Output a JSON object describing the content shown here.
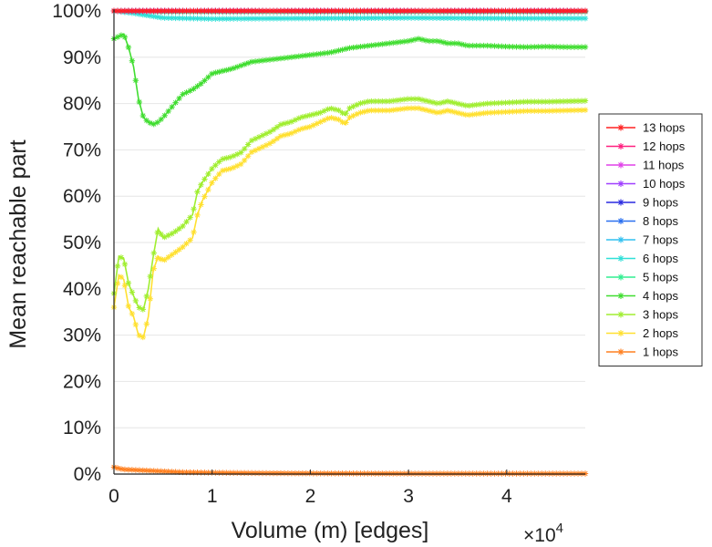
{
  "chart_data": {
    "type": "line",
    "xlabel": "Volume (m) [edges]",
    "ylabel": "Mean reachable part",
    "x_exponent_label": "×10",
    "x_exponent_power": "4",
    "xlim": [
      0,
      48000
    ],
    "ylim": [
      0,
      100
    ],
    "x_ticks": [
      0,
      10000,
      20000,
      30000,
      40000
    ],
    "x_tick_labels": [
      "0",
      "1",
      "2",
      "3",
      "4"
    ],
    "y_ticks": [
      0,
      10,
      20,
      30,
      40,
      50,
      60,
      70,
      80,
      90,
      100
    ],
    "y_tick_labels": [
      "0%",
      "10%",
      "20%",
      "30%",
      "40%",
      "50%",
      "60%",
      "70%",
      "80%",
      "90%",
      "100%"
    ],
    "grid": true,
    "legend_position": "right",
    "marker": "asterisk",
    "series": [
      {
        "name": "13 hops",
        "color": "#ff2020",
        "x": [
          0,
          48000
        ],
        "y": [
          100,
          100
        ]
      },
      {
        "name": "12 hops",
        "color": "#ff2080",
        "x": [
          0,
          48000
        ],
        "y": [
          100,
          100
        ]
      },
      {
        "name": "11 hops",
        "color": "#e040e8",
        "x": [
          0,
          48000
        ],
        "y": [
          100,
          100
        ]
      },
      {
        "name": "10 hops",
        "color": "#a040ff",
        "x": [
          0,
          48000
        ],
        "y": [
          100,
          100
        ]
      },
      {
        "name": "9 hops",
        "color": "#2a2ae0",
        "x": [
          0,
          48000
        ],
        "y": [
          100,
          100
        ]
      },
      {
        "name": "8 hops",
        "color": "#2a70f0",
        "x": [
          0,
          48000
        ],
        "y": [
          100,
          100
        ]
      },
      {
        "name": "7 hops",
        "color": "#30c0f0",
        "x": [
          0,
          48000
        ],
        "y": [
          100,
          100
        ]
      },
      {
        "name": "6 hops",
        "color": "#30e0d8",
        "x": [
          0,
          2000,
          5000,
          10000,
          20000,
          30000,
          40000,
          48000
        ],
        "y": [
          100,
          99.5,
          98.5,
          98.3,
          98.4,
          98.5,
          98.4,
          98.4
        ]
      },
      {
        "name": "5 hops",
        "color": "#30ee90",
        "x": [
          0,
          2000,
          5000,
          10000,
          20000,
          30000,
          40000,
          48000
        ],
        "y": [
          100,
          100,
          99.8,
          99.8,
          99.8,
          99.8,
          99.8,
          99.8
        ]
      },
      {
        "name": "4 hops",
        "color": "#40dd30",
        "x": [
          0,
          500,
          1000,
          1500,
          2000,
          2500,
          3000,
          3500,
          4000,
          4500,
          5000,
          6000,
          7000,
          8000,
          9000,
          10000,
          12000,
          14000,
          16000,
          18000,
          20000,
          22000,
          24000,
          26000,
          28000,
          30000,
          31000,
          32000,
          33000,
          34000,
          35000,
          36000,
          38000,
          40000,
          42000,
          44000,
          46000,
          48000
        ],
        "y": [
          94,
          94.5,
          95,
          92,
          88,
          81,
          77,
          76,
          75.5,
          76,
          77,
          79.5,
          82,
          83,
          84.5,
          86.5,
          87.5,
          89,
          89.5,
          90,
          90.5,
          91,
          92,
          92.5,
          93,
          93.5,
          94,
          93.5,
          93.5,
          93,
          93,
          92.5,
          92.5,
          92.3,
          92.2,
          92.3,
          92.2,
          92.2
        ]
      },
      {
        "name": "3 hops",
        "color": "#a0ee30",
        "x": [
          0,
          500,
          1000,
          1500,
          2000,
          2500,
          3000,
          3500,
          4000,
          4500,
          5000,
          6000,
          7000,
          8000,
          8500,
          9000,
          10000,
          11000,
          12000,
          13000,
          14000,
          15000,
          16000,
          17000,
          18000,
          19000,
          20000,
          21000,
          22000,
          23000,
          23500,
          24000,
          25000,
          26000,
          28000,
          30000,
          31000,
          32000,
          33000,
          34000,
          35000,
          36000,
          38000,
          40000,
          42000,
          44000,
          46000,
          48000
        ],
        "y": [
          39,
          47,
          46.5,
          41,
          38.5,
          36,
          35.5,
          40,
          47,
          53,
          51,
          52,
          53.5,
          56,
          61,
          63,
          66,
          68,
          68.5,
          69.5,
          72,
          73,
          74,
          75.5,
          76,
          77,
          77.5,
          78,
          79,
          78.5,
          77.5,
          79,
          80,
          80.5,
          80.5,
          81,
          81,
          80.5,
          80,
          80.5,
          80,
          79.5,
          80,
          80.2,
          80.4,
          80.4,
          80.5,
          80.6
        ]
      },
      {
        "name": "2 hops",
        "color": "#ffe030",
        "x": [
          0,
          500,
          1000,
          1500,
          2000,
          2500,
          3000,
          3500,
          4000,
          4500,
          5000,
          6000,
          7000,
          8000,
          8500,
          9000,
          10000,
          11000,
          12000,
          13000,
          14000,
          15000,
          16000,
          17000,
          18000,
          19000,
          20000,
          21000,
          22000,
          23000,
          23500,
          24000,
          25000,
          26000,
          28000,
          30000,
          31000,
          32000,
          33000,
          34000,
          35000,
          36000,
          38000,
          40000,
          42000,
          44000,
          46000,
          48000
        ],
        "y": [
          36,
          43,
          42,
          36,
          34,
          30,
          29.5,
          34,
          44,
          47,
          46,
          47.5,
          49,
          51,
          56,
          59,
          63,
          65.5,
          66,
          67,
          69.5,
          70.5,
          71.5,
          73,
          73.5,
          74.5,
          75,
          76,
          77,
          76.5,
          75.5,
          77,
          78,
          78.5,
          78.5,
          79,
          79,
          78.5,
          78,
          78.5,
          78,
          77.5,
          78,
          78.2,
          78.4,
          78.4,
          78.5,
          78.6
        ]
      },
      {
        "name": "1 hops",
        "color": "#ff8020",
        "x": [
          0,
          500,
          1000,
          2000,
          3000,
          4000,
          5000,
          7000,
          10000,
          15000,
          20000,
          30000,
          40000,
          48000
        ],
        "y": [
          1.5,
          1.2,
          1.0,
          0.9,
          0.8,
          0.7,
          0.6,
          0.4,
          0.3,
          0.2,
          0.15,
          0.1,
          0.1,
          0.1
        ]
      }
    ]
  }
}
